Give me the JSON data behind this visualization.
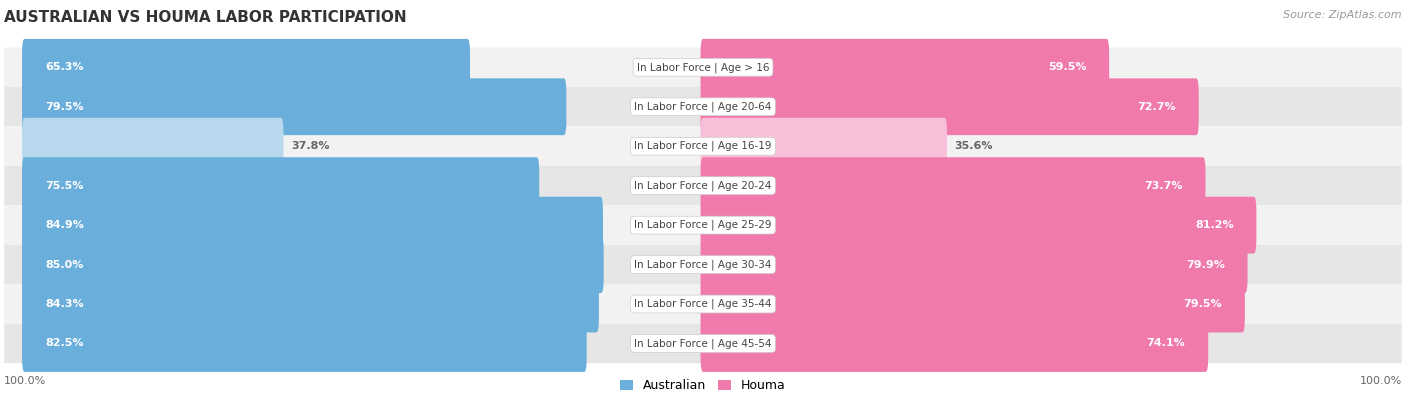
{
  "title": "AUSTRALIAN VS HOUMA LABOR PARTICIPATION",
  "source": "Source: ZipAtlas.com",
  "categories": [
    "In Labor Force | Age > 16",
    "In Labor Force | Age 20-64",
    "In Labor Force | Age 16-19",
    "In Labor Force | Age 20-24",
    "In Labor Force | Age 25-29",
    "In Labor Force | Age 30-34",
    "In Labor Force | Age 35-44",
    "In Labor Force | Age 45-54"
  ],
  "australian_values": [
    65.3,
    79.5,
    37.8,
    75.5,
    84.9,
    85.0,
    84.3,
    82.5
  ],
  "houma_values": [
    59.5,
    72.7,
    35.6,
    73.7,
    81.2,
    79.9,
    79.5,
    74.1
  ],
  "australian_color": "#6aaedc",
  "australian_color_light": "#b8d8ee",
  "houma_color": "#f07aab",
  "houma_color_light": "#f8c0d8",
  "row_bg_light": "#f2f2f2",
  "row_bg_dark": "#e6e6e6",
  "label_white": "#ffffff",
  "label_dark": "#888888",
  "center_label_color": "#444444",
  "title_color": "#333333",
  "source_color": "#999999",
  "axis_label_color": "#666666",
  "max_value": 100.0,
  "figsize": [
    14.06,
    3.95
  ],
  "dpi": 100
}
